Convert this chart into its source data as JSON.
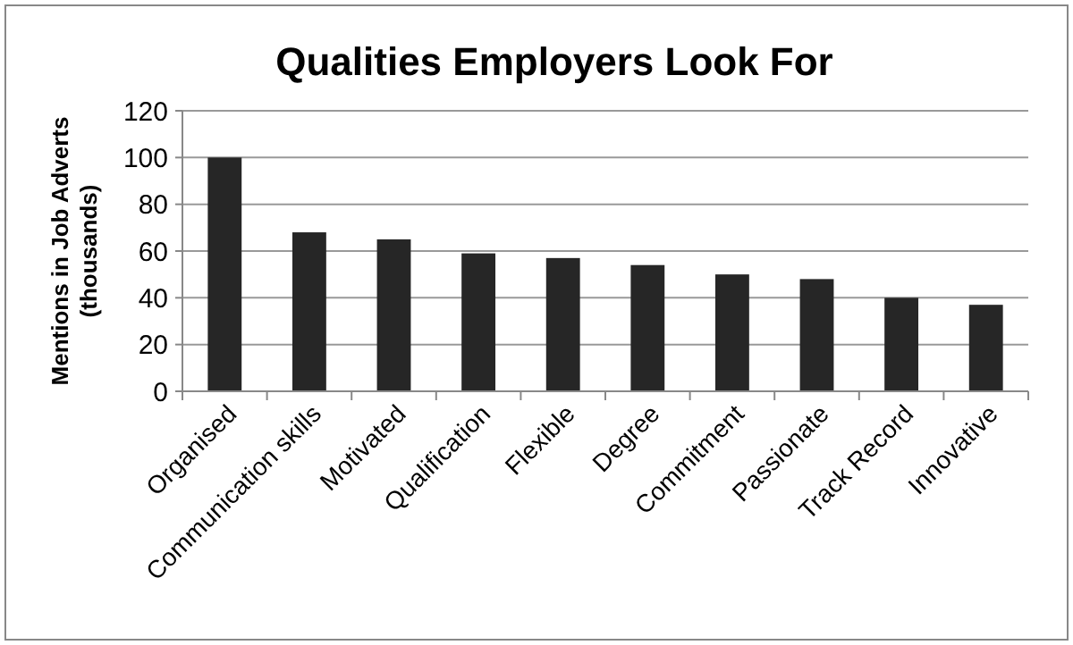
{
  "chart_data": {
    "type": "bar",
    "title": "Qualities Employers Look For",
    "ylabel": "Mentions in Job Adverts (thousands)",
    "categories": [
      "Organised",
      "Communication skills",
      "Motivated",
      "Qualification",
      "Flexible",
      "Degree",
      "Commitment",
      "Passionate",
      "Track Record",
      "Innovative"
    ],
    "values": [
      100,
      68,
      65,
      59,
      57,
      54,
      50,
      48,
      40,
      37
    ],
    "color": "#262626",
    "ylim": [
      0,
      120
    ],
    "yticks": [
      0,
      20,
      40,
      60,
      80,
      100,
      120
    ],
    "grid": "y"
  }
}
